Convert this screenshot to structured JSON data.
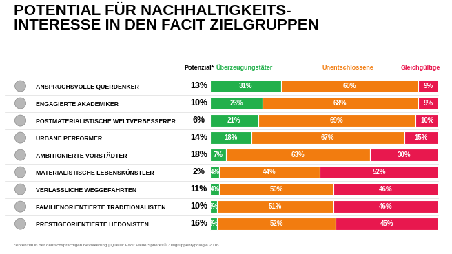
{
  "chart_data": {
    "type": "bar",
    "orientation": "horizontal",
    "stacked": true,
    "data_labels": true,
    "tick_labels": "y",
    "title": "POTENTIAL FÜR NACHHALTIGKEITS-\nINTERESSE IN DEN FACIT ZIELGRUPPEN",
    "note": "*Potenzial in der deutschsprachigen Bevölkerung | Quelle: Facit Value Spheres® Zielgruppentypologie 2016",
    "categories": [
      "ANSPRUCHSVOLLE QUERDENKER",
      "ENGAGIERTE AKADEMIKER",
      "POSTMATERIALISTISCHE WELTVERBESSERER",
      "URBANE PERFORMER",
      "AMBITIONIERTE VORSTÄDTER",
      "MATERIALISTISCHE LEBENSKÜNSTLER",
      "VERLÄSSLICHE WEGGEFÄHRTEN",
      "FAMILIENORIENTIERTE TRADITIONALISTEN",
      "PRESTIGEORIENTIERTE HEDONISTEN"
    ],
    "potential": {
      "title": "Potenzial*",
      "values": [
        13,
        10,
        6,
        14,
        18,
        2,
        11,
        10,
        16
      ],
      "value_labels": [
        "13%",
        "10%",
        "6%",
        "14%",
        "18%",
        "2%",
        "11%",
        "10%",
        "16%"
      ]
    },
    "xlim": [
      0,
      100
    ],
    "series": [
      {
        "name": "Überzeugungstäter",
        "color": "#22b04b",
        "values": [
          31,
          23,
          21,
          18,
          7,
          4,
          4,
          3,
          3
        ],
        "value_labels": [
          "31%",
          "23%",
          "21%",
          "18%",
          "7%",
          "4%",
          "4%",
          "3%",
          "3%"
        ]
      },
      {
        "name": "Unentschlossene",
        "color": "#f27c0f",
        "values": [
          60,
          68,
          69,
          67,
          63,
          44,
          50,
          51,
          52
        ],
        "value_labels": [
          "60%",
          "68%",
          "69%",
          "67%",
          "63%",
          "44%",
          "50%",
          "51%",
          "52%"
        ]
      },
      {
        "name": "Gleichgültige",
        "color": "#e8184e",
        "values": [
          9,
          9,
          10,
          15,
          30,
          52,
          46,
          46,
          45
        ],
        "value_labels": [
          "9%",
          "9%",
          "10%",
          "15%",
          "30%",
          "52%",
          "46%",
          "46%",
          "45%"
        ]
      }
    ]
  }
}
